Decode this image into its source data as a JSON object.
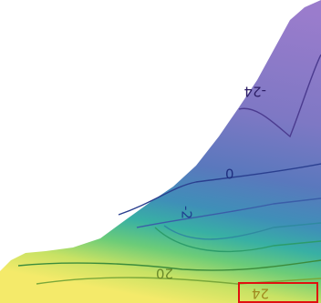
{
  "contour_labels": [
    "-24",
    "0",
    "-2",
    "20",
    "24"
  ]
}
